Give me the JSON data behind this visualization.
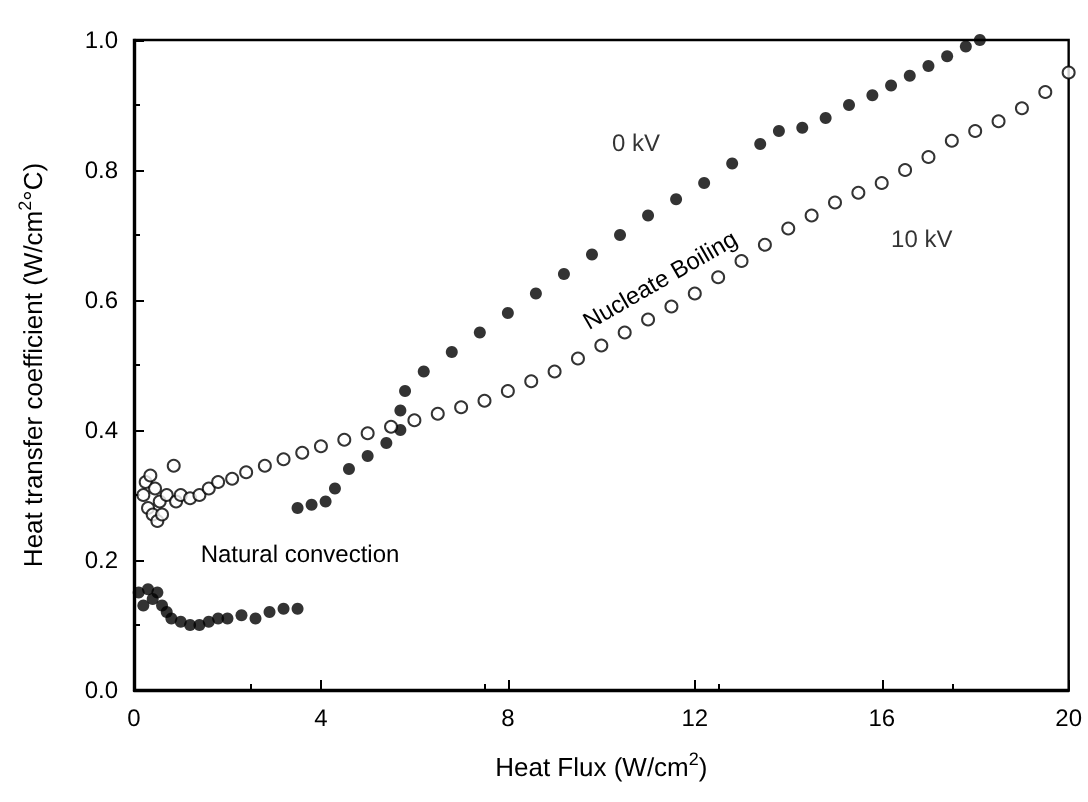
{
  "chart_data": {
    "type": "scatter",
    "xlabel": "Heat Flux (W/cm$^{2}$)",
    "ylabel": "Heat transfer coefficient (W/cm$^{2}$°C)",
    "xlim": [
      0,
      20
    ],
    "xticks": [
      0,
      4,
      8,
      12,
      16,
      20
    ],
    "ylim": [
      0,
      1.0
    ],
    "yticks": [
      {
        "value": 0,
        "label": "0.0"
      },
      {
        "value": 0.2,
        "label": "0.2"
      },
      {
        "value": 0.4,
        "label": "0.4"
      },
      {
        "value": 0.6,
        "label": "0.6"
      },
      {
        "value": 0.8,
        "label": "0.8"
      },
      {
        "value": 1.0,
        "label": "1.0"
      }
    ],
    "grid": false,
    "legend": false,
    "marker": "circle",
    "annotations": [
      "Nucleate Boiling",
      "Natural convection"
    ],
    "series": [
      {
        "name": "0 kV",
        "color": "#000000",
        "x": [
          0.1,
          0.2,
          0.3,
          0.4,
          0.5,
          0.6,
          0.7,
          0.8,
          1.0,
          1.2,
          1.4,
          1.6,
          1.8,
          2.0,
          2.3,
          2.6,
          2.9,
          3.2,
          3.5,
          3.5,
          3.8,
          4.1,
          4.3,
          4.6,
          5.0,
          5.4,
          5.7,
          5.7,
          5.8,
          6.2,
          6.8,
          7.4,
          8.0,
          8.6,
          9.2,
          9.8,
          10.4,
          11.0,
          11.6,
          12.2,
          12.8,
          13.4,
          13.8,
          14.3,
          14.8,
          15.3,
          15.8,
          16.2,
          16.6,
          17.0,
          17.4,
          17.8,
          18.1
        ],
        "values": [
          0.15,
          0.13,
          0.155,
          0.14,
          0.15,
          0.13,
          0.12,
          0.11,
          0.105,
          0.1,
          0.1,
          0.105,
          0.11,
          0.11,
          0.115,
          0.11,
          0.12,
          0.125,
          0.125,
          0.28,
          0.285,
          0.29,
          0.31,
          0.34,
          0.36,
          0.38,
          0.4,
          0.43,
          0.46,
          0.49,
          0.52,
          0.55,
          0.58,
          0.61,
          0.64,
          0.67,
          0.7,
          0.73,
          0.755,
          0.78,
          0.81,
          0.84,
          0.86,
          0.865,
          0.88,
          0.9,
          0.915,
          0.93,
          0.945,
          0.96,
          0.975,
          0.99,
          1.0
        ]
      },
      {
        "name": "10 kV",
        "color": "#000000",
        "x": [
          0.2,
          0.25,
          0.3,
          0.35,
          0.4,
          0.45,
          0.5,
          0.55,
          0.6,
          0.7,
          0.85,
          0.9,
          1.0,
          1.2,
          1.4,
          1.6,
          1.8,
          2.1,
          2.4,
          2.8,
          3.2,
          3.6,
          4.0,
          4.5,
          5.0,
          5.5,
          6.0,
          6.5,
          7.0,
          7.5,
          8.0,
          8.5,
          9.0,
          9.5,
          10.0,
          10.5,
          11.0,
          11.5,
          12.0,
          12.5,
          13.0,
          13.5,
          14.0,
          14.5,
          15.0,
          15.5,
          16.0,
          16.5,
          17.0,
          17.5,
          18.0,
          18.5,
          19.0,
          19.5,
          20.0
        ],
        "values": [
          0.3,
          0.32,
          0.28,
          0.33,
          0.27,
          0.31,
          0.26,
          0.29,
          0.27,
          0.3,
          0.345,
          0.29,
          0.3,
          0.295,
          0.3,
          0.31,
          0.32,
          0.325,
          0.335,
          0.345,
          0.355,
          0.365,
          0.375,
          0.385,
          0.395,
          0.405,
          0.415,
          0.425,
          0.435,
          0.445,
          0.46,
          0.475,
          0.49,
          0.51,
          0.53,
          0.55,
          0.57,
          0.59,
          0.61,
          0.635,
          0.66,
          0.685,
          0.71,
          0.73,
          0.75,
          0.765,
          0.78,
          0.8,
          0.82,
          0.845,
          0.86,
          0.875,
          0.895,
          0.92,
          0.95
        ]
      }
    ]
  }
}
